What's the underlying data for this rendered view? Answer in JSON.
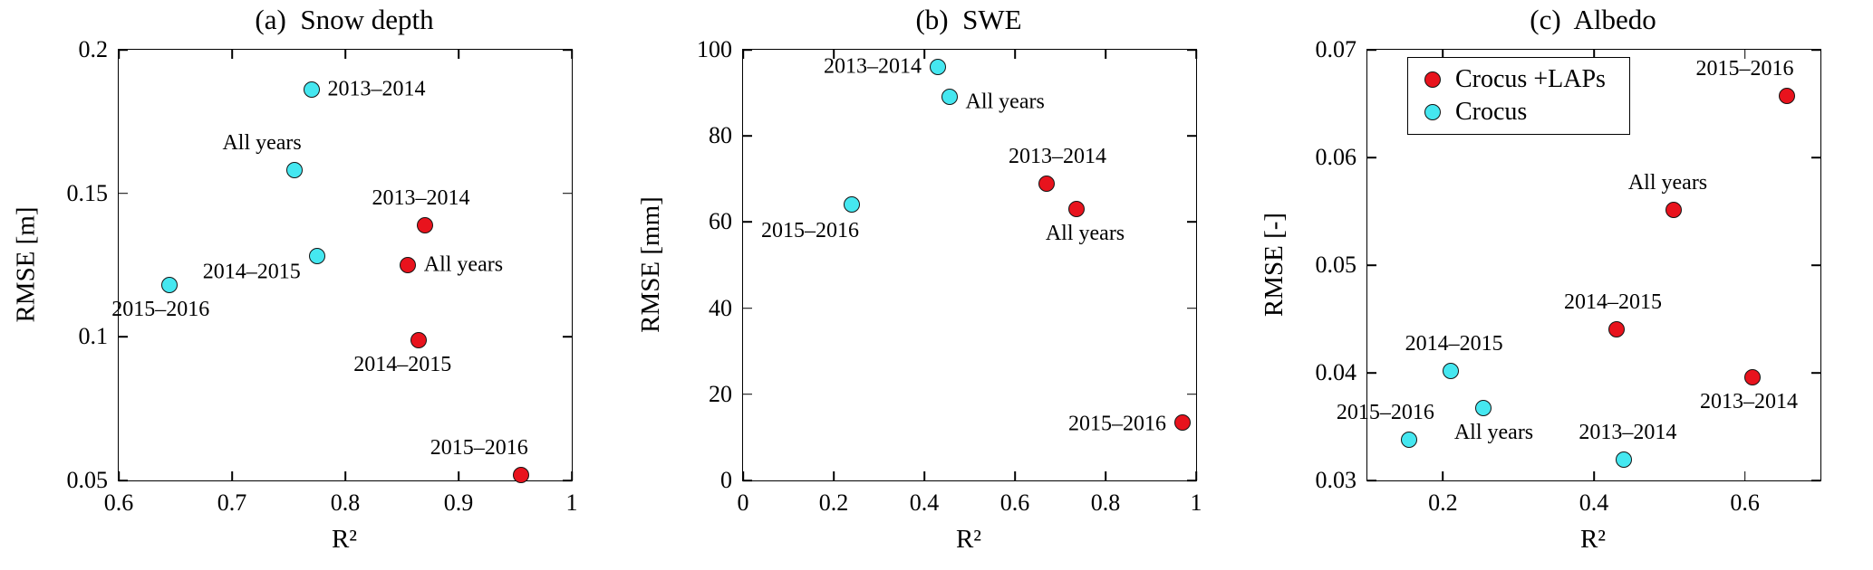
{
  "figure": {
    "background": "#ffffff",
    "marker_edge_color": "#141414"
  },
  "colors": {
    "crocus_laps": "#e8131d",
    "crocus": "#45e7f0",
    "axis": "#000000"
  },
  "chart_data": [
    {
      "type": "scatter",
      "title": "(a)  Snow depth",
      "xlabel": "R²",
      "ylabel": "RMSE [m]",
      "xlim": [
        0.6,
        1.0
      ],
      "ylim": [
        0.05,
        0.2
      ],
      "grid": false,
      "xticks": [
        {
          "v": 0.6,
          "t": "0.6"
        },
        {
          "v": 0.7,
          "t": "0.7"
        },
        {
          "v": 0.8,
          "t": "0.8"
        },
        {
          "v": 0.9,
          "t": "0.9"
        },
        {
          "v": 1,
          "t": "1"
        }
      ],
      "yticks": [
        {
          "v": 0.05,
          "t": "0.05"
        },
        {
          "v": 0.1,
          "t": "0.1"
        },
        {
          "v": 0.15,
          "t": "0.15"
        },
        {
          "v": 0.2,
          "t": "0.2"
        }
      ],
      "series": [
        {
          "name": "Crocus +LAPs",
          "color": "#e8131d",
          "points": [
            {
              "x": 0.87,
              "y": 0.139,
              "label": "2013–2014",
              "anchor": "above",
              "dx": -4
            },
            {
              "x": 0.855,
              "y": 0.125,
              "label": "All years",
              "anchor": "right"
            },
            {
              "x": 0.865,
              "y": 0.099,
              "label": "2014–2015",
              "anchor": "below",
              "dx": -18
            },
            {
              "x": 0.955,
              "y": 0.052,
              "label": "2015–2016",
              "anchor": "above-left"
            }
          ]
        },
        {
          "name": "Crocus",
          "color": "#45e7f0",
          "points": [
            {
              "x": 0.77,
              "y": 0.186,
              "label": "2013–2014",
              "anchor": "right"
            },
            {
              "x": 0.755,
              "y": 0.158,
              "label": "All years",
              "anchor": "above-left"
            },
            {
              "x": 0.775,
              "y": 0.128,
              "label": "2014–2015",
              "anchor": "left",
              "dy": 18
            },
            {
              "x": 0.645,
              "y": 0.118,
              "label": "2015–2016",
              "anchor": "below",
              "dx": -10
            }
          ]
        }
      ]
    },
    {
      "type": "scatter",
      "title": "(b)  SWE",
      "xlabel": "R²",
      "ylabel": "RMSE [mm]",
      "xlim": [
        0,
        1
      ],
      "ylim": [
        0,
        100
      ],
      "grid": false,
      "xticks": [
        {
          "v": 0,
          "t": "0"
        },
        {
          "v": 0.2,
          "t": "0.2"
        },
        {
          "v": 0.4,
          "t": "0.4"
        },
        {
          "v": 0.6,
          "t": "0.6"
        },
        {
          "v": 0.8,
          "t": "0.8"
        },
        {
          "v": 1,
          "t": "1"
        }
      ],
      "yticks": [
        {
          "v": 0,
          "t": "0"
        },
        {
          "v": 20,
          "t": "20"
        },
        {
          "v": 40,
          "t": "40"
        },
        {
          "v": 60,
          "t": "60"
        },
        {
          "v": 80,
          "t": "80"
        },
        {
          "v": 100,
          "t": "100"
        }
      ],
      "series": [
        {
          "name": "Crocus +LAPs",
          "color": "#e8131d",
          "points": [
            {
              "x": 0.67,
              "y": 69,
              "label": "2013–2014",
              "anchor": "above",
              "dx": 12
            },
            {
              "x": 0.735,
              "y": 63,
              "label": "All years",
              "anchor": "below",
              "dx": 10
            },
            {
              "x": 0.97,
              "y": 13.5,
              "label": "2015–2016",
              "anchor": "left",
              "dy": 2
            }
          ]
        },
        {
          "name": "Crocus",
          "color": "#45e7f0",
          "points": [
            {
              "x": 0.43,
              "y": 96,
              "label": "2013–2014",
              "anchor": "left"
            },
            {
              "x": 0.455,
              "y": 89,
              "label": "All years",
              "anchor": "right",
              "dy": 6
            },
            {
              "x": 0.24,
              "y": 64,
              "label": "2015–2016",
              "anchor": "below-left",
              "dy": 2
            }
          ]
        }
      ]
    },
    {
      "type": "scatter",
      "title": "(c)  Albedo",
      "xlabel": "R²",
      "ylabel": "RMSE [-]",
      "xlim": [
        0.1,
        0.7
      ],
      "ylim": [
        0.03,
        0.07
      ],
      "grid": false,
      "legend": {
        "show": true,
        "position": "top-left",
        "entries": [
          {
            "label": "Crocus +LAPs",
            "color": "#e8131d"
          },
          {
            "label": "Crocus",
            "color": "#45e7f0"
          }
        ]
      },
      "xticks": [
        {
          "v": 0.2,
          "t": "0.2"
        },
        {
          "v": 0.4,
          "t": "0.4"
        },
        {
          "v": 0.6,
          "t": "0.6"
        }
      ],
      "yticks": [
        {
          "v": 0.03,
          "t": "0.03"
        },
        {
          "v": 0.04,
          "t": "0.04"
        },
        {
          "v": 0.05,
          "t": "0.05"
        },
        {
          "v": 0.06,
          "t": "0.06"
        },
        {
          "v": 0.07,
          "t": "0.07"
        }
      ],
      "series": [
        {
          "name": "Crocus +LAPs",
          "color": "#e8131d",
          "points": [
            {
              "x": 0.655,
              "y": 0.0657,
              "label": "2015–2016",
              "anchor": "above-left"
            },
            {
              "x": 0.505,
              "y": 0.0551,
              "label": "All years",
              "anchor": "above",
              "dx": -6
            },
            {
              "x": 0.43,
              "y": 0.044,
              "label": "2014–2015",
              "anchor": "above",
              "dx": -4
            },
            {
              "x": 0.61,
              "y": 0.0396,
              "label": "2013–2014",
              "anchor": "below",
              "dx": -4
            }
          ]
        },
        {
          "name": "Crocus",
          "color": "#45e7f0",
          "points": [
            {
              "x": 0.21,
              "y": 0.0402,
              "label": "2014–2015",
              "anchor": "above",
              "dx": 4
            },
            {
              "x": 0.253,
              "y": 0.0367,
              "label": "All years",
              "anchor": "below",
              "dx": 12
            },
            {
              "x": 0.155,
              "y": 0.0338,
              "label": "2015–2016",
              "anchor": "above-left",
              "dx": 20
            },
            {
              "x": 0.44,
              "y": 0.0319,
              "label": "2013–2014",
              "anchor": "above",
              "dx": 4
            }
          ]
        }
      ]
    }
  ]
}
